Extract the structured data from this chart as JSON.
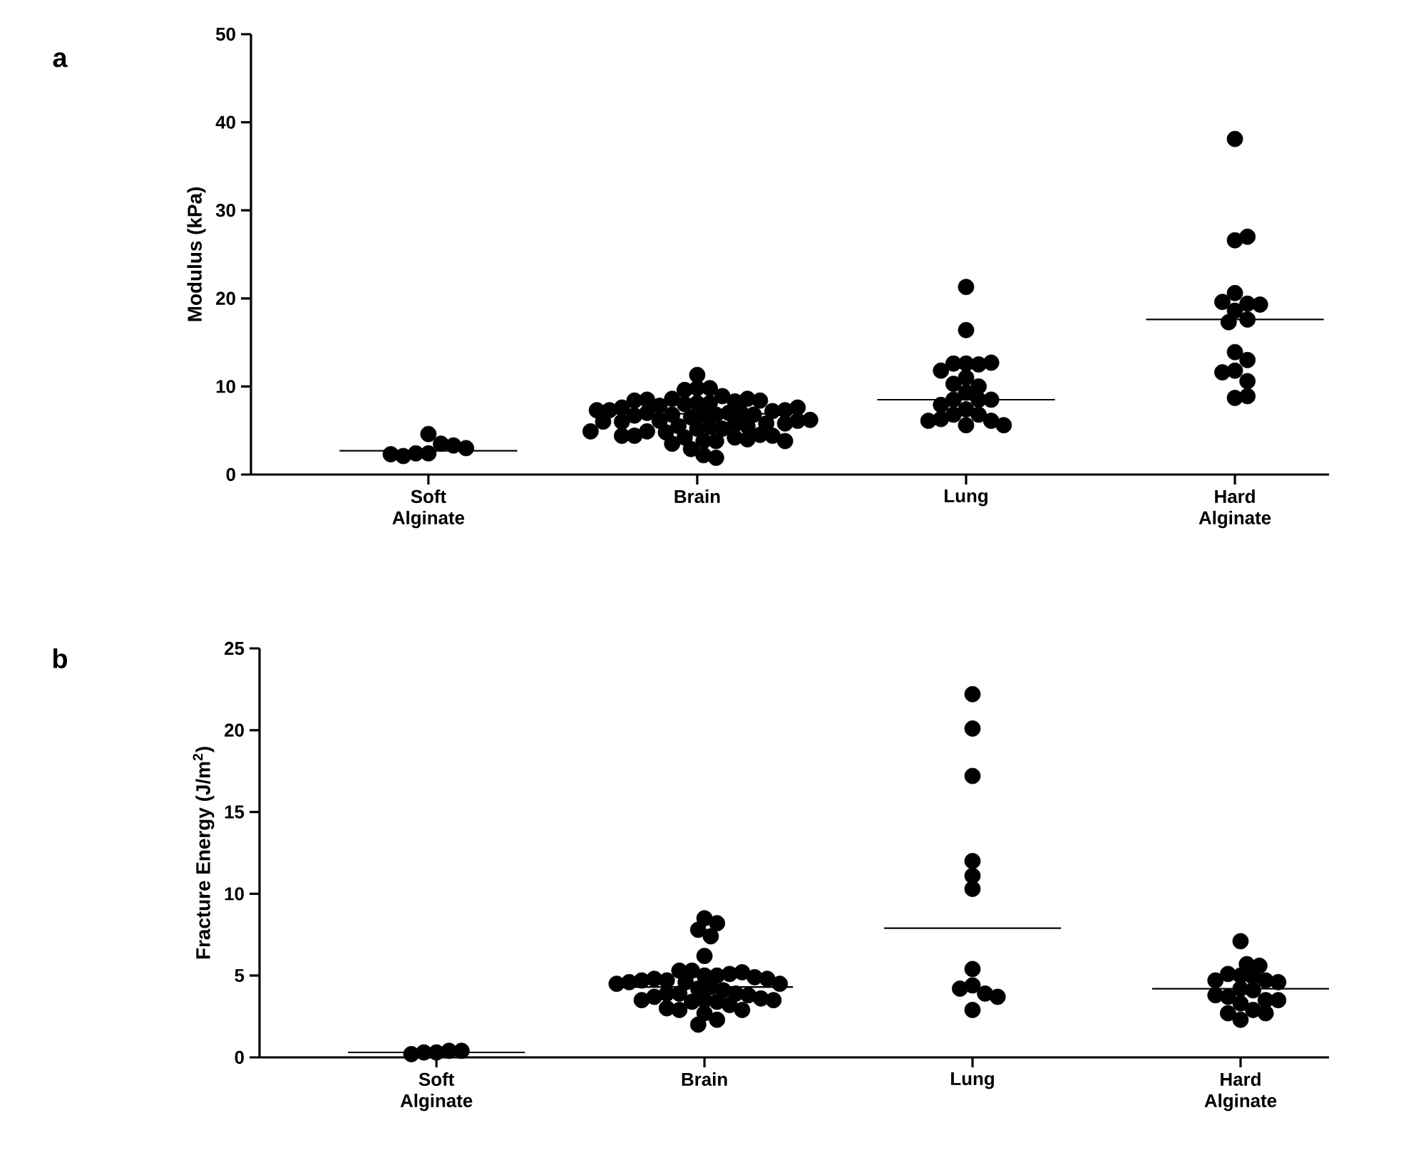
{
  "chart_data": [
    {
      "type": "scatter",
      "title": "a",
      "ylabel": "Modulus (kPa)",
      "categories": [
        "Soft Alginate",
        "Brain",
        "Lung",
        "Hard Alginate"
      ],
      "ylim": [
        0,
        50
      ],
      "yticks": [
        0,
        10,
        20,
        30,
        40,
        50
      ],
      "marker": "circle",
      "series": [
        {
          "color": "#000000",
          "x": [
            "Soft Alginate",
            "Soft Alginate",
            "Soft Alginate",
            "Soft Alginate",
            "Soft Alginate",
            "Soft Alginate",
            "Soft Alginate",
            "Soft Alginate",
            "Brain",
            "Brain",
            "Brain",
            "Brain",
            "Brain",
            "Brain",
            "Brain",
            "Brain",
            "Brain",
            "Brain",
            "Brain",
            "Brain",
            "Brain",
            "Brain",
            "Brain",
            "Brain",
            "Brain",
            "Brain",
            "Brain",
            "Brain",
            "Brain",
            "Brain",
            "Brain",
            "Brain",
            "Brain",
            "Brain",
            "Brain",
            "Brain",
            "Brain",
            "Brain",
            "Brain",
            "Brain",
            "Brain",
            "Brain",
            "Brain",
            "Brain",
            "Brain",
            "Brain",
            "Brain",
            "Brain",
            "Brain",
            "Brain",
            "Brain",
            "Brain",
            "Brain",
            "Brain",
            "Brain",
            "Brain",
            "Brain",
            "Brain",
            "Brain",
            "Brain",
            "Brain",
            "Brain",
            "Brain",
            "Brain",
            "Brain",
            "Brain",
            "Brain",
            "Brain",
            "Lung",
            "Lung",
            "Lung",
            "Lung",
            "Lung",
            "Lung",
            "Lung",
            "Lung",
            "Lung",
            "Lung",
            "Lung",
            "Lung",
            "Lung",
            "Lung",
            "Lung",
            "Lung",
            "Lung",
            "Lung",
            "Lung",
            "Lung",
            "Lung",
            "Lung",
            "Lung",
            "Hard Alginate",
            "Hard Alginate",
            "Hard Alginate",
            "Hard Alginate",
            "Hard Alginate",
            "Hard Alginate",
            "Hard Alginate",
            "Hard Alginate",
            "Hard Alginate",
            "Hard Alginate",
            "Hard Alginate",
            "Hard Alginate",
            "Hard Alginate",
            "Hard Alginate",
            "Hard Alginate",
            "Hard Alginate",
            "Hard Alginate"
          ],
          "values": [
            2.4,
            3.5,
            2.4,
            3.3,
            4.6,
            2.1,
            3.0,
            2.3,
            11.3,
            9.8,
            9.8,
            9.6,
            8.9,
            8.6,
            8.1,
            8.1,
            8.0,
            8.3,
            7.8,
            8.6,
            8.5,
            8.4,
            8.4,
            6.8,
            6.5,
            6.8,
            7.2,
            7.6,
            7.3,
            6.8,
            7.0,
            7.3,
            7.6,
            7.3,
            7.0,
            7.0,
            6.8,
            6.7,
            6.1,
            6.0,
            6.1,
            5.8,
            6.0,
            6.2,
            5.8,
            5.7,
            5.2,
            5.4,
            5.5,
            5.2,
            5.5,
            4.9,
            4.9,
            4.8,
            4.5,
            4.4,
            4.4,
            4.4,
            4.2,
            4.2,
            3.8,
            4.0,
            3.8,
            3.8,
            3.5,
            2.9,
            2.2,
            1.9,
            21.3,
            16.4,
            12.6,
            12.5,
            12.6,
            12.7,
            11.8,
            11.0,
            10.0,
            10.3,
            9.3,
            8.5,
            8.5,
            8.5,
            7.9,
            7.4,
            6.8,
            6.8,
            6.1,
            6.3,
            5.6,
            5.6,
            6.1,
            38.1,
            26.6,
            27.0,
            20.6,
            19.4,
            19.6,
            19.3,
            18.6,
            17.6,
            17.3,
            13.9,
            13.0,
            11.8,
            11.6,
            10.6,
            8.7,
            8.9
          ]
        },
        {
          "type": "box",
          "color": "#000000",
          "boxes": [
            {
              "low": 2.7,
              "q1": 2.7,
              "median": 2.7,
              "q3": 2.7,
              "high": 2.7
            },
            {
              "low": 6.9,
              "q1": 6.9,
              "median": 6.9,
              "q3": 6.9,
              "high": 6.9
            },
            {
              "low": 8.5,
              "q1": 8.5,
              "median": 8.5,
              "q3": 8.5,
              "high": 8.5
            },
            {
              "low": 17.6,
              "q1": 17.6,
              "median": 17.6,
              "q3": 17.6,
              "high": 17.6
            }
          ]
        }
      ]
    },
    {
      "type": "scatter",
      "title": "b",
      "ylabel": "Fracture Energy (J/m$^{2}$)",
      "categories": [
        "Soft Alginate",
        "Brain",
        "Lung",
        "Hard Alginate"
      ],
      "ylim": [
        0,
        25
      ],
      "yticks": [
        0,
        5,
        10,
        15,
        20,
        25
      ],
      "marker": "circle",
      "series": [
        {
          "color": "#000000",
          "x": [
            "Soft Alginate",
            "Soft Alginate",
            "Soft Alginate",
            "Soft Alginate",
            "Soft Alginate",
            "Brain",
            "Brain",
            "Brain",
            "Brain",
            "Brain",
            "Brain",
            "Brain",
            "Brain",
            "Brain",
            "Brain",
            "Brain",
            "Brain",
            "Brain",
            "Brain",
            "Brain",
            "Brain",
            "Brain",
            "Brain",
            "Brain",
            "Brain",
            "Brain",
            "Brain",
            "Brain",
            "Brain",
            "Brain",
            "Brain",
            "Brain",
            "Brain",
            "Brain",
            "Brain",
            "Brain",
            "Brain",
            "Brain",
            "Brain",
            "Brain",
            "Brain",
            "Brain",
            "Brain",
            "Brain",
            "Brain",
            "Brain",
            "Lung",
            "Lung",
            "Lung",
            "Lung",
            "Lung",
            "Lung",
            "Lung",
            "Lung",
            "Lung",
            "Lung",
            "Lung",
            "Lung",
            "Hard Alginate",
            "Hard Alginate",
            "Hard Alginate",
            "Hard Alginate",
            "Hard Alginate",
            "Hard Alginate",
            "Hard Alginate",
            "Hard Alginate",
            "Hard Alginate",
            "Hard Alginate",
            "Hard Alginate",
            "Hard Alginate",
            "Hard Alginate",
            "Hard Alginate",
            "Hard Alginate",
            "Hard Alginate",
            "Hard Alginate",
            "Hard Alginate",
            "Hard Alginate",
            "Hard Alginate"
          ],
          "values": [
            0.3,
            0.4,
            0.3,
            0.4,
            0.2,
            8.5,
            8.2,
            7.8,
            7.4,
            6.2,
            5.0,
            5.0,
            5.3,
            5.1,
            5.3,
            5.2,
            4.7,
            4.9,
            4.8,
            4.8,
            4.7,
            4.6,
            4.5,
            4.6,
            4.5,
            4.3,
            4.2,
            4.1,
            3.9,
            3.9,
            3.9,
            3.8,
            3.7,
            3.6,
            3.5,
            3.4,
            3.4,
            3.5,
            3.5,
            3.2,
            2.9,
            2.9,
            3.0,
            2.7,
            2.3,
            2.0,
            22.2,
            20.1,
            17.2,
            12.0,
            11.1,
            10.3,
            5.4,
            4.4,
            3.9,
            4.2,
            3.7,
            2.9,
            7.1,
            5.0,
            4.9,
            5.1,
            4.7,
            5.6,
            5.7,
            4.7,
            4.6,
            4.2,
            4.1,
            3.7,
            3.5,
            3.8,
            3.5,
            3.3,
            2.9,
            2.7,
            2.7,
            2.3
          ]
        },
        {
          "type": "box",
          "color": "#000000",
          "boxes": [
            {
              "low": 0.3,
              "q1": 0.3,
              "median": 0.3,
              "q3": 0.3,
              "high": 0.3
            },
            {
              "low": 4.3,
              "q1": 4.3,
              "median": 4.3,
              "q3": 4.3,
              "high": 4.3
            },
            {
              "low": 7.9,
              "q1": 7.9,
              "median": 7.9,
              "q3": 7.9,
              "high": 7.9
            },
            {
              "low": 4.2,
              "q1": 4.2,
              "median": 4.2,
              "q3": 4.2,
              "high": 4.2
            }
          ]
        }
      ]
    }
  ]
}
